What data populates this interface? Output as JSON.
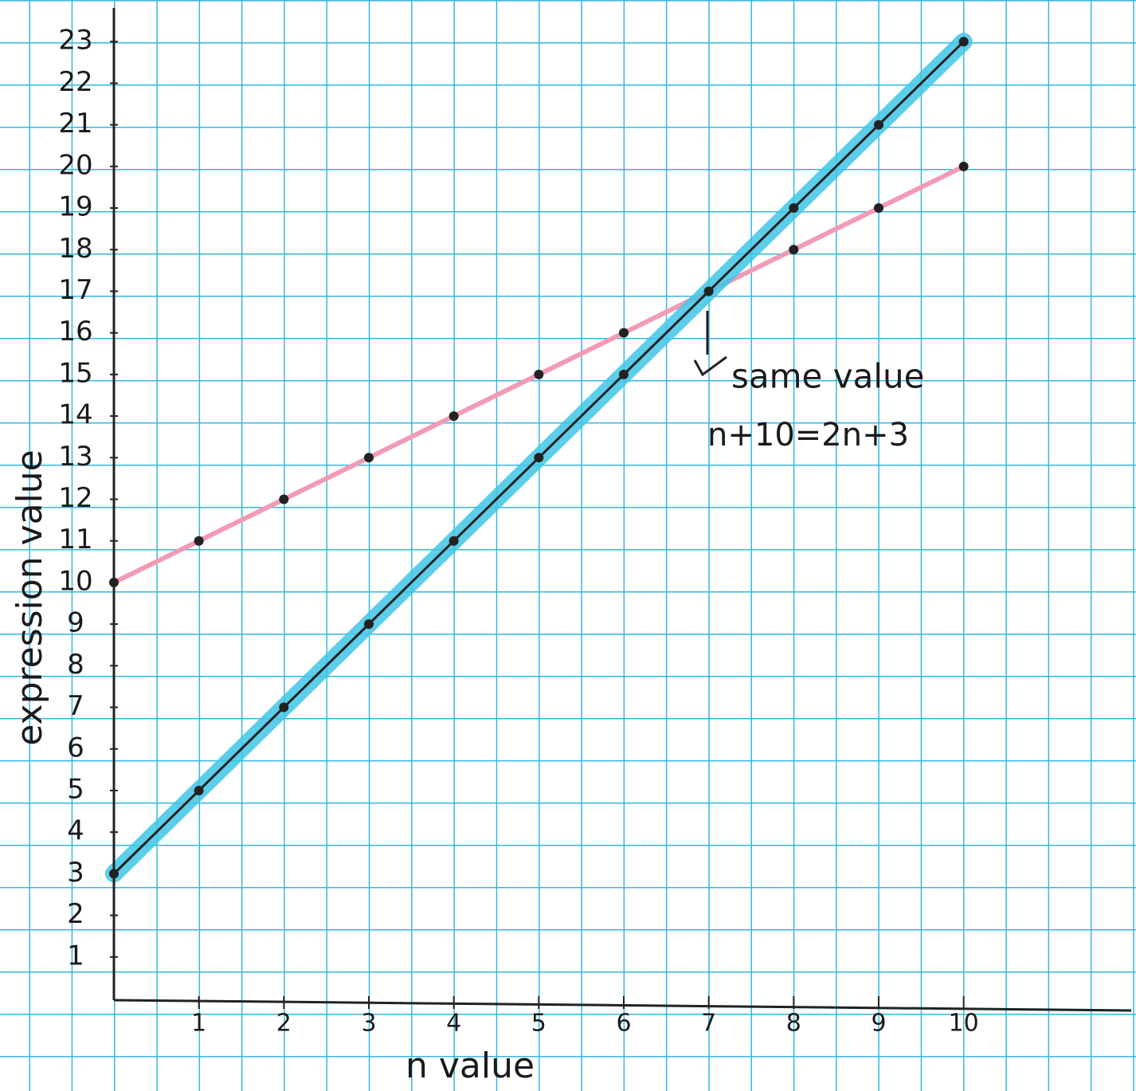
{
  "chart_data": {
    "type": "line",
    "xlabel": "n value",
    "ylabel": "expression value",
    "x": [
      0,
      1,
      2,
      3,
      4,
      5,
      6,
      7,
      8,
      9,
      10
    ],
    "series": [
      {
        "color": "#f29bb5",
        "values": [
          10,
          11,
          12,
          13,
          14,
          15,
          16,
          17,
          18,
          19,
          20
        ]
      },
      {
        "color": "#222222",
        "highlight": "#3fc6e6",
        "values": [
          3,
          5,
          7,
          9,
          11,
          13,
          15,
          17,
          19,
          21,
          23
        ]
      }
    ],
    "xlim": [
      0,
      12
    ],
    "ylim": [
      0,
      24
    ],
    "xticks": [
      1,
      2,
      3,
      4,
      5,
      6,
      7,
      8,
      9,
      10
    ],
    "yticks": [
      1,
      2,
      3,
      4,
      5,
      6,
      7,
      8,
      9,
      10,
      11,
      12,
      13,
      14,
      15,
      16,
      17,
      18,
      19,
      20,
      21,
      22,
      23
    ],
    "annotations": [
      "same value",
      "n+10=2n+3"
    ]
  }
}
